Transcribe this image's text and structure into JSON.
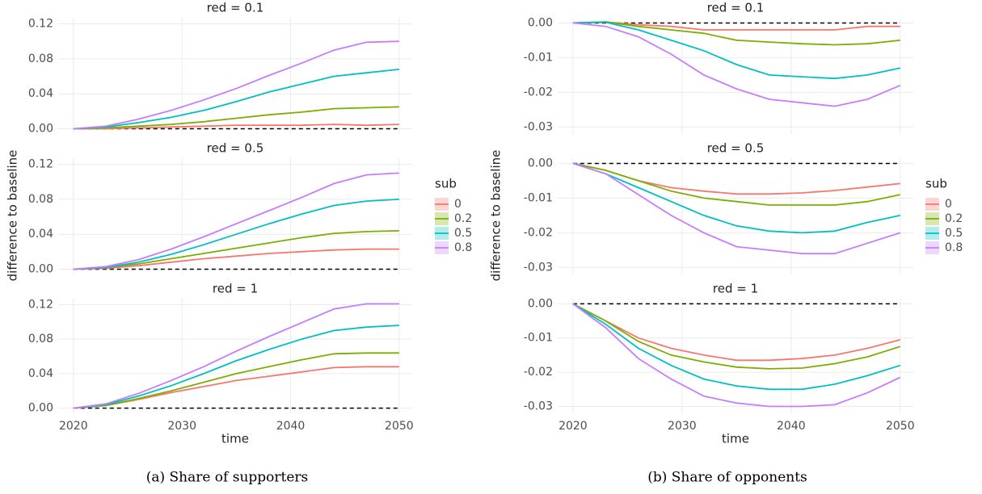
{
  "figures": [
    {
      "caption": "(a) Share of supporters",
      "xlabel": "time",
      "ylabel": "difference to baseline",
      "legend_title": "sub"
    },
    {
      "caption": "(b) Share of opponents",
      "xlabel": "time",
      "ylabel": "difference to baseline",
      "legend_title": "sub"
    }
  ],
  "chart_data": [
    {
      "type": "line",
      "title": "red = 0.1",
      "x": [
        2020,
        2023,
        2026,
        2029,
        2032,
        2035,
        2038,
        2041,
        2044,
        2047,
        2050
      ],
      "xlim": [
        2018.6,
        2051.2
      ],
      "xticks": [
        2020,
        2030,
        2040,
        2050
      ],
      "ylim": [
        -0.006,
        0.127
      ],
      "yticks": [
        {
          "value": 0,
          "label": "0.00"
        },
        {
          "value": 0.04,
          "label": "0.04"
        },
        {
          "value": 0.08,
          "label": "0.08"
        },
        {
          "value": 0.12,
          "label": "0.12"
        }
      ],
      "hline": 0,
      "grid": true,
      "series": [
        {
          "name": "0",
          "color": "#F8766D",
          "values": [
            0,
            0,
            0.001,
            0.002,
            0.003,
            0.004,
            0.004,
            0.004,
            0.005,
            0.004,
            0.005
          ]
        },
        {
          "name": "0.2",
          "color": "#7CAE00",
          "values": [
            0,
            0.001,
            0.003,
            0.005,
            0.008,
            0.012,
            0.016,
            0.019,
            0.023,
            0.024,
            0.025
          ]
        },
        {
          "name": "0.5",
          "color": "#00BFC4",
          "values": [
            0,
            0.002,
            0.007,
            0.013,
            0.021,
            0.031,
            0.042,
            0.051,
            0.06,
            0.064,
            0.068
          ]
        },
        {
          "name": "0.8",
          "color": "#C77CFF",
          "values": [
            0,
            0.003,
            0.011,
            0.021,
            0.033,
            0.046,
            0.061,
            0.075,
            0.09,
            0.099,
            0.1
          ]
        }
      ]
    },
    {
      "type": "line",
      "title": "red = 0.5",
      "x": [
        2020,
        2023,
        2026,
        2029,
        2032,
        2035,
        2038,
        2041,
        2044,
        2047,
        2050
      ],
      "xlim": [
        2018.6,
        2051.2
      ],
      "xticks": [
        2020,
        2030,
        2040,
        2050
      ],
      "ylim": [
        -0.006,
        0.127
      ],
      "yticks": [
        {
          "value": 0,
          "label": "0.00"
        },
        {
          "value": 0.04,
          "label": "0.04"
        },
        {
          "value": 0.08,
          "label": "0.08"
        },
        {
          "value": 0.12,
          "label": "0.12"
        }
      ],
      "hline": 0,
      "grid": true,
      "series": [
        {
          "name": "0",
          "color": "#F8766D",
          "values": [
            0,
            0.001,
            0.004,
            0.008,
            0.012,
            0.015,
            0.018,
            0.02,
            0.022,
            0.023,
            0.023
          ]
        },
        {
          "name": "0.2",
          "color": "#7CAE00",
          "values": [
            0,
            0.002,
            0.006,
            0.012,
            0.018,
            0.024,
            0.03,
            0.036,
            0.041,
            0.043,
            0.044
          ]
        },
        {
          "name": "0.5",
          "color": "#00BFC4",
          "values": [
            0,
            0.002,
            0.008,
            0.017,
            0.028,
            0.04,
            0.052,
            0.063,
            0.073,
            0.078,
            0.08
          ]
        },
        {
          "name": "0.8",
          "color": "#C77CFF",
          "values": [
            0,
            0.003,
            0.011,
            0.023,
            0.037,
            0.052,
            0.067,
            0.082,
            0.098,
            0.108,
            0.11
          ]
        }
      ]
    },
    {
      "type": "line",
      "title": "red = 1",
      "x": [
        2020,
        2023,
        2026,
        2029,
        2032,
        2035,
        2038,
        2041,
        2044,
        2047,
        2050
      ],
      "xlim": [
        2018.6,
        2051.2
      ],
      "xticks": [
        2020,
        2030,
        2040,
        2050
      ],
      "ylim": [
        -0.006,
        0.127
      ],
      "yticks": [
        {
          "value": 0,
          "label": "0.00"
        },
        {
          "value": 0.04,
          "label": "0.04"
        },
        {
          "value": 0.08,
          "label": "0.08"
        },
        {
          "value": 0.12,
          "label": "0.12"
        }
      ],
      "hline": 0,
      "grid": true,
      "series": [
        {
          "name": "0",
          "color": "#F8766D",
          "values": [
            0,
            0.003,
            0.01,
            0.018,
            0.025,
            0.032,
            0.037,
            0.042,
            0.047,
            0.048,
            0.048
          ]
        },
        {
          "name": "0.2",
          "color": "#7CAE00",
          "values": [
            0,
            0.003,
            0.011,
            0.02,
            0.03,
            0.04,
            0.048,
            0.056,
            0.063,
            0.064,
            0.064
          ]
        },
        {
          "name": "0.5",
          "color": "#00BFC4",
          "values": [
            0,
            0.004,
            0.014,
            0.026,
            0.04,
            0.055,
            0.068,
            0.08,
            0.09,
            0.094,
            0.096
          ]
        },
        {
          "name": "0.8",
          "color": "#C77CFF",
          "values": [
            0,
            0.005,
            0.017,
            0.032,
            0.048,
            0.066,
            0.083,
            0.099,
            0.115,
            0.121,
            0.121
          ]
        }
      ]
    },
    {
      "type": "line",
      "title": "red = 0.1",
      "x": [
        2020,
        2023,
        2026,
        2029,
        2032,
        2035,
        2038,
        2041,
        2044,
        2047,
        2050
      ],
      "xlim": [
        2018.6,
        2051.2
      ],
      "xticks": [
        2020,
        2030,
        2040,
        2050
      ],
      "ylim": [
        -0.032,
        0.0015
      ],
      "yticks": [
        {
          "value": 0,
          "label": "0.00"
        },
        {
          "value": -0.01,
          "label": "-0.01"
        },
        {
          "value": -0.02,
          "label": "-0.02"
        },
        {
          "value": -0.03,
          "label": "-0.03"
        }
      ],
      "hline": 0,
      "grid": true,
      "series": [
        {
          "name": "0",
          "color": "#F8766D",
          "values": [
            0,
            0.0003,
            -0.0005,
            -0.001,
            -0.002,
            -0.002,
            -0.002,
            -0.002,
            -0.002,
            -0.001,
            -0.001
          ]
        },
        {
          "name": "0.2",
          "color": "#7CAE00",
          "values": [
            0,
            0.0003,
            -0.001,
            -0.002,
            -0.003,
            -0.005,
            -0.0055,
            -0.006,
            -0.0063,
            -0.006,
            -0.005
          ]
        },
        {
          "name": "0.5",
          "color": "#00BFC4",
          "values": [
            0,
            0.0002,
            -0.002,
            -0.005,
            -0.008,
            -0.012,
            -0.015,
            -0.0155,
            -0.016,
            -0.015,
            -0.013
          ]
        },
        {
          "name": "0.8",
          "color": "#C77CFF",
          "values": [
            0,
            -0.001,
            -0.004,
            -0.009,
            -0.015,
            -0.019,
            -0.022,
            -0.023,
            -0.024,
            -0.022,
            -0.018
          ]
        }
      ]
    },
    {
      "type": "line",
      "title": "red = 0.5",
      "x": [
        2020,
        2023,
        2026,
        2029,
        2032,
        2035,
        2038,
        2041,
        2044,
        2047,
        2050
      ],
      "xlim": [
        2018.6,
        2051.2
      ],
      "xticks": [
        2020,
        2030,
        2040,
        2050
      ],
      "ylim": [
        -0.032,
        0.0015
      ],
      "yticks": [
        {
          "value": 0,
          "label": "0.00"
        },
        {
          "value": -0.01,
          "label": "-0.01"
        },
        {
          "value": -0.02,
          "label": "-0.02"
        },
        {
          "value": -0.03,
          "label": "-0.03"
        }
      ],
      "hline": 0,
      "grid": true,
      "series": [
        {
          "name": "0",
          "color": "#F8766D",
          "values": [
            0,
            -0.002,
            -0.005,
            -0.007,
            -0.008,
            -0.0088,
            -0.0088,
            -0.0085,
            -0.0078,
            -0.0068,
            -0.0058
          ]
        },
        {
          "name": "0.2",
          "color": "#7CAE00",
          "values": [
            0,
            -0.002,
            -0.005,
            -0.008,
            -0.01,
            -0.011,
            -0.012,
            -0.012,
            -0.012,
            -0.011,
            -0.009
          ]
        },
        {
          "name": "0.5",
          "color": "#00BFC4",
          "values": [
            0,
            -0.003,
            -0.007,
            -0.011,
            -0.015,
            -0.018,
            -0.0195,
            -0.02,
            -0.0195,
            -0.017,
            -0.015
          ]
        },
        {
          "name": "0.8",
          "color": "#C77CFF",
          "values": [
            0,
            -0.003,
            -0.009,
            -0.015,
            -0.02,
            -0.024,
            -0.025,
            -0.026,
            -0.026,
            -0.023,
            -0.02
          ]
        }
      ]
    },
    {
      "type": "line",
      "title": "red = 1",
      "x": [
        2020,
        2023,
        2026,
        2029,
        2032,
        2035,
        2038,
        2041,
        2044,
        2047,
        2050
      ],
      "xlim": [
        2018.6,
        2051.2
      ],
      "xticks": [
        2020,
        2030,
        2040,
        2050
      ],
      "ylim": [
        -0.032,
        0.0015
      ],
      "yticks": [
        {
          "value": 0,
          "label": "0.00"
        },
        {
          "value": -0.01,
          "label": "-0.01"
        },
        {
          "value": -0.02,
          "label": "-0.02"
        },
        {
          "value": -0.03,
          "label": "-0.03"
        }
      ],
      "hline": 0,
      "grid": true,
      "series": [
        {
          "name": "0",
          "color": "#F8766D",
          "values": [
            0,
            -0.005,
            -0.01,
            -0.013,
            -0.015,
            -0.0165,
            -0.0165,
            -0.016,
            -0.015,
            -0.013,
            -0.0105
          ]
        },
        {
          "name": "0.2",
          "color": "#7CAE00",
          "values": [
            0,
            -0.005,
            -0.011,
            -0.015,
            -0.017,
            -0.0185,
            -0.019,
            -0.0188,
            -0.0175,
            -0.0155,
            -0.0125
          ]
        },
        {
          "name": "0.5",
          "color": "#00BFC4",
          "values": [
            0,
            -0.006,
            -0.013,
            -0.018,
            -0.022,
            -0.024,
            -0.025,
            -0.025,
            -0.0235,
            -0.021,
            -0.018
          ]
        },
        {
          "name": "0.8",
          "color": "#C77CFF",
          "values": [
            0,
            -0.007,
            -0.016,
            -0.022,
            -0.027,
            -0.029,
            -0.03,
            -0.03,
            -0.0295,
            -0.026,
            -0.0215
          ]
        }
      ]
    }
  ]
}
